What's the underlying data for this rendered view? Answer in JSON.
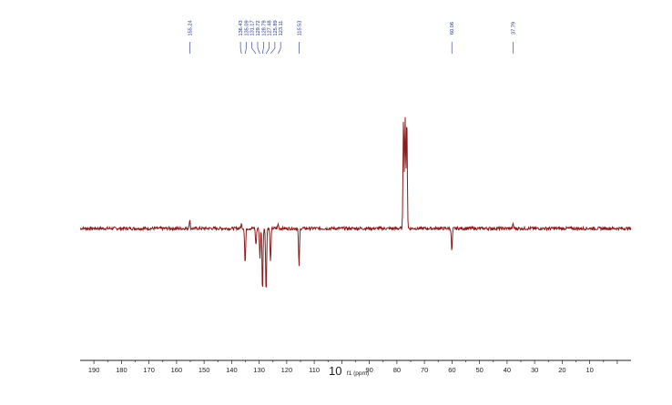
{
  "chart_data": {
    "type": "line",
    "title": "",
    "xlabel": "f1 (ppm)",
    "ylabel": "",
    "overlay_text": "10",
    "xlim": [
      195,
      -5
    ],
    "x_reversed": true,
    "ylim": [
      -42,
      68
    ],
    "grid": false,
    "legend": "none",
    "series_color": "#8b1a1a",
    "label_color": "#1f2f86",
    "x_ticks": [
      190,
      180,
      170,
      160,
      150,
      140,
      130,
      120,
      110,
      100,
      90,
      80,
      70,
      60,
      50,
      40,
      30,
      20,
      10
    ],
    "x_tick_labels": [
      "190",
      "180",
      "170",
      "160",
      "150",
      "140",
      "130",
      "120",
      "110",
      "100",
      "90",
      "80",
      "70",
      "60",
      "50",
      "40",
      "30",
      "20",
      "10"
    ],
    "peak_labels": [
      "155.24",
      "136.43",
      "135.09",
      "131.17",
      "129.72",
      "128.79",
      "127.48",
      "125.89",
      "123.11",
      "115.53",
      "60.06",
      "37.79"
    ],
    "peaks": [
      {
        "ppm": 155.24,
        "intensity": 4
      },
      {
        "ppm": 136.43,
        "intensity": 2
      },
      {
        "ppm": 135.09,
        "intensity": -17
      },
      {
        "ppm": 131.17,
        "intensity": -8
      },
      {
        "ppm": 129.72,
        "intensity": -14
      },
      {
        "ppm": 128.79,
        "intensity": -30
      },
      {
        "ppm": 127.48,
        "intensity": -31
      },
      {
        "ppm": 125.89,
        "intensity": -16
      },
      {
        "ppm": 123.11,
        "intensity": 2
      },
      {
        "ppm": 115.53,
        "intensity": -18
      },
      {
        "ppm": 77.6,
        "intensity": 53
      },
      {
        "ppm": 77.0,
        "intensity": 53
      },
      {
        "ppm": 76.4,
        "intensity": 53
      },
      {
        "ppm": 60.06,
        "intensity": -11
      },
      {
        "ppm": 37.79,
        "intensity": 2
      }
    ]
  }
}
